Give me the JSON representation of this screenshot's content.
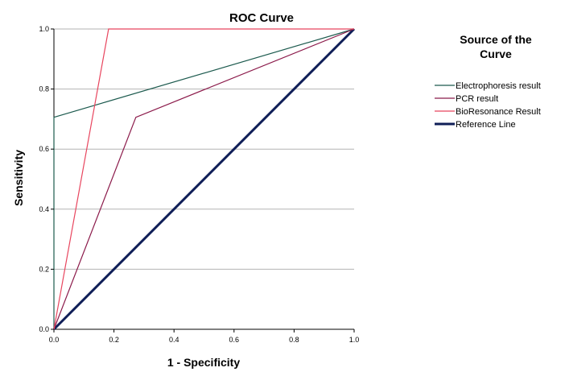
{
  "chart_data": {
    "type": "line",
    "title": "ROC Curve",
    "xlabel": "1 - Specificity",
    "ylabel": "Sensitivity",
    "xlim": [
      0,
      1
    ],
    "ylim": [
      0,
      1
    ],
    "x_ticks": [
      "0.0",
      "0.2",
      "0.4",
      "0.6",
      "0.8",
      "1.0"
    ],
    "y_ticks": [
      "0.0",
      "0.2",
      "0.4",
      "0.6",
      "0.8",
      "1.0"
    ],
    "grid": "horizontal",
    "legend": {
      "title_line1": "Source of the",
      "title_line2": "Curve",
      "placement": "right"
    },
    "series": [
      {
        "name": "Electrophoresis result",
        "color": "#1c5a4e",
        "x": [
          0.0,
          0.0,
          1.0
        ],
        "y": [
          0.0,
          0.706,
          1.0
        ]
      },
      {
        "name": "PCR result",
        "color": "#8b1a4a",
        "x": [
          0.0,
          0.273,
          1.0
        ],
        "y": [
          0.0,
          0.706,
          1.0
        ]
      },
      {
        "name": "BioResonance Result",
        "color": "#e8455e",
        "x": [
          0.0,
          0.182,
          1.0
        ],
        "y": [
          0.0,
          1.0,
          1.0
        ]
      },
      {
        "name": "Reference Line",
        "color": "#0f1e57",
        "x": [
          0.0,
          1.0
        ],
        "y": [
          0.0,
          1.0
        ]
      }
    ]
  }
}
